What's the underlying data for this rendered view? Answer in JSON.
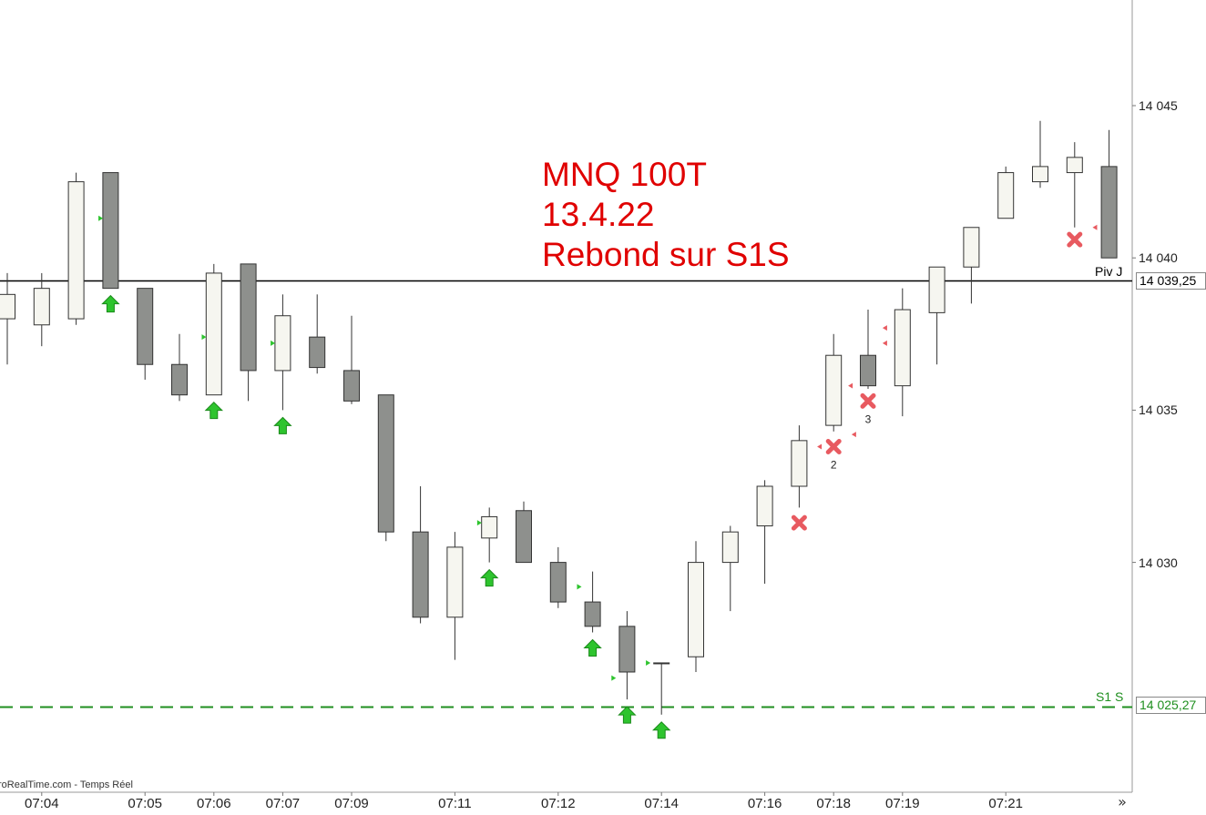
{
  "chart_data": {
    "type": "candlestick",
    "title_lines": [
      "MNQ 100T",
      "13.4.22",
      "Rebond sur S1S"
    ],
    "y_ticks": [
      "14 045",
      "14 040",
      "14 035",
      "14 030"
    ],
    "y_tick_values": [
      14045,
      14040,
      14035,
      14030
    ],
    "x_ticks": [
      {
        "label": "07:04",
        "index": 1
      },
      {
        "label": "07:05",
        "index": 4
      },
      {
        "label": "07:06",
        "index": 6
      },
      {
        "label": "07:07",
        "index": 8
      },
      {
        "label": "07:09",
        "index": 10
      },
      {
        "label": "07:11",
        "index": 13
      },
      {
        "label": "07:12",
        "index": 16
      },
      {
        "label": "07:14",
        "index": 19
      },
      {
        "label": "07:16",
        "index": 22
      },
      {
        "label": "07:18",
        "index": 24
      },
      {
        "label": "07:19",
        "index": 26
      },
      {
        "label": "07:21",
        "index": 29
      }
    ],
    "candles": [
      {
        "o": 14038.0,
        "h": 14039.5,
        "l": 14036.5,
        "c": 14038.8
      },
      {
        "o": 14037.8,
        "h": 14039.5,
        "l": 14037.1,
        "c": 14039.0
      },
      {
        "o": 14038.0,
        "h": 14042.8,
        "l": 14037.8,
        "c": 14042.5
      },
      {
        "o": 14042.8,
        "h": 14042.8,
        "l": 14039.0,
        "c": 14039.0
      },
      {
        "o": 14039.0,
        "h": 14039.0,
        "l": 14036.0,
        "c": 14036.5
      },
      {
        "o": 14036.5,
        "h": 14037.5,
        "l": 14035.3,
        "c": 14035.5
      },
      {
        "o": 14035.5,
        "h": 14039.8,
        "l": 14035.5,
        "c": 14039.5
      },
      {
        "o": 14039.8,
        "h": 14039.8,
        "l": 14035.3,
        "c": 14036.3
      },
      {
        "o": 14036.3,
        "h": 14038.8,
        "l": 14035.0,
        "c": 14038.1
      },
      {
        "o": 14037.4,
        "h": 14038.8,
        "l": 14036.2,
        "c": 14036.4
      },
      {
        "o": 14036.3,
        "h": 14038.1,
        "l": 14035.2,
        "c": 14035.3
      },
      {
        "o": 14035.5,
        "h": 14035.5,
        "l": 14030.7,
        "c": 14031.0
      },
      {
        "o": 14031.0,
        "h": 14032.5,
        "l": 14028.0,
        "c": 14028.2
      },
      {
        "o": 14028.2,
        "h": 14031.0,
        "l": 14026.8,
        "c": 14030.5
      },
      {
        "o": 14030.8,
        "h": 14031.8,
        "l": 14030.0,
        "c": 14031.5
      },
      {
        "o": 14031.7,
        "h": 14032.0,
        "l": 14030.0,
        "c": 14030.0
      },
      {
        "o": 14030.0,
        "h": 14030.5,
        "l": 14028.5,
        "c": 14028.7
      },
      {
        "o": 14028.7,
        "h": 14029.7,
        "l": 14027.7,
        "c": 14027.9
      },
      {
        "o": 14027.9,
        "h": 14028.4,
        "l": 14025.5,
        "c": 14026.4
      },
      {
        "o": 14026.7,
        "h": 14026.7,
        "l": 14025.0,
        "c": 14026.7
      },
      {
        "o": 14026.9,
        "h": 14030.7,
        "l": 14026.4,
        "c": 14030.0
      },
      {
        "o": 14030.0,
        "h": 14031.2,
        "l": 14028.4,
        "c": 14031.0
      },
      {
        "o": 14031.2,
        "h": 14032.7,
        "l": 14029.3,
        "c": 14032.5
      },
      {
        "o": 14032.5,
        "h": 14034.5,
        "l": 14031.8,
        "c": 14034.0
      },
      {
        "o": 14034.5,
        "h": 14037.5,
        "l": 14034.3,
        "c": 14036.8
      },
      {
        "o": 14036.8,
        "h": 14038.3,
        "l": 14035.7,
        "c": 14035.8
      },
      {
        "o": 14035.8,
        "h": 14039.0,
        "l": 14034.8,
        "c": 14038.3
      },
      {
        "o": 14038.2,
        "h": 14039.7,
        "l": 14036.5,
        "c": 14039.7
      },
      {
        "o": 14039.7,
        "h": 14041.0,
        "l": 14038.5,
        "c": 14041.0
      },
      {
        "o": 14041.3,
        "h": 14043.0,
        "l": 14041.3,
        "c": 14042.8
      },
      {
        "o": 14042.5,
        "h": 14044.5,
        "l": 14042.3,
        "c": 14043.0
      },
      {
        "o": 14042.8,
        "h": 14043.8,
        "l": 14041.0,
        "c": 14043.3
      },
      {
        "o": 14043.0,
        "h": 14044.2,
        "l": 14040.0,
        "c": 14040.0
      }
    ],
    "buy_arrows": [
      3,
      6,
      8,
      14,
      17,
      18,
      19
    ],
    "sell_crosses": [
      {
        "index": 23,
        "value": 14031.3,
        "label": ""
      },
      {
        "index": 24,
        "value": 14033.8,
        "label": "2"
      },
      {
        "index": 25,
        "value": 14035.3,
        "label": "3"
      },
      {
        "index": 31,
        "value": 14040.6,
        "label": ""
      }
    ],
    "green_markers": [
      {
        "index": 2.7,
        "value": 14041.3
      },
      {
        "index": 5.7,
        "value": 14037.4
      },
      {
        "index": 7.7,
        "value": 14037.2
      },
      {
        "index": 13.7,
        "value": 14031.3
      },
      {
        "index": 16.6,
        "value": 14029.2
      },
      {
        "index": 17.6,
        "value": 14026.2
      },
      {
        "index": 18.6,
        "value": 14026.7
      }
    ],
    "red_markers": [
      {
        "index": 23.6,
        "value": 14033.8
      },
      {
        "index": 24.6,
        "value": 14034.2
      },
      {
        "index": 24.5,
        "value": 14035.8
      },
      {
        "index": 25.5,
        "value": 14037.2
      },
      {
        "index": 25.5,
        "value": 14037.7
      },
      {
        "index": 31.6,
        "value": 14041.0
      }
    ],
    "levels": [
      {
        "name": "Piv J",
        "value": 14039.25,
        "label": "14 039,25",
        "color": "#000000",
        "style": "solid"
      },
      {
        "name": "S1 S",
        "value": 14025.27,
        "label": "14 025,27",
        "color": "#1f8f1f",
        "style": "dashed"
      }
    ],
    "colors": {
      "title": "#e00000",
      "bull_candle_fill": "#f6f6f0",
      "bear_candle_fill": "#8e908d",
      "buy_arrow": "#2ec42e",
      "sell_cross": "#e85a60",
      "support_line": "#1f8f1f",
      "pivot_line": "#000000"
    },
    "grid": false
  },
  "watermark": "roRealTime.com - Temps Réel",
  "scroll_button": "»"
}
